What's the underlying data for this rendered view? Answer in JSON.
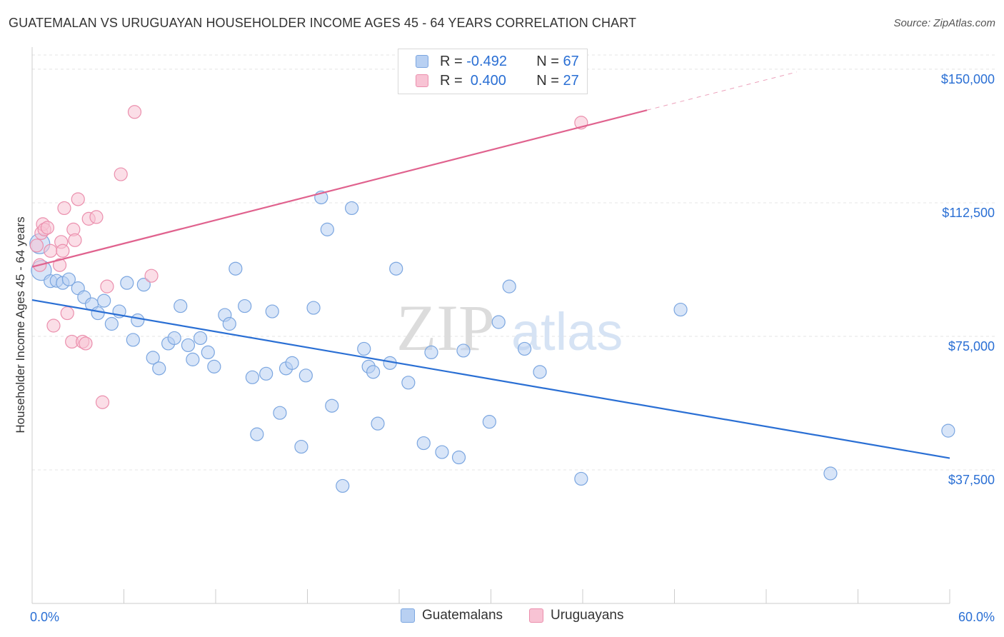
{
  "header": {
    "title": "GUATEMALAN VS URUGUAYAN HOUSEHOLDER INCOME AGES 45 - 64 YEARS CORRELATION CHART",
    "source": "Source: ZipAtlas.com"
  },
  "watermark": {
    "zip": "ZIP",
    "atlas": "atlas"
  },
  "stats_legend": [
    {
      "r_label": "R =",
      "r_value": "-0.492",
      "n_label": "N =",
      "n_value": "67"
    },
    {
      "r_label": "R =",
      "r_value": " 0.400",
      "n_label": "N =",
      "n_value": "27"
    }
  ],
  "colors": {
    "blue_fill": "#b8d0f2",
    "blue_stroke": "#7ba6e0",
    "blue_line": "#2a6fd4",
    "pink_fill": "#f8c3d4",
    "pink_stroke": "#eb8fad",
    "pink_line": "#e0628e",
    "axis_label": "#2a6fd4",
    "grid": "#e4e4e4"
  },
  "chart_data": {
    "type": "scatter",
    "xlabel": "",
    "ylabel": "Householder Income Ages 45 - 64 years",
    "xlim": [
      0,
      60
    ],
    "ylim": [
      0,
      155000
    ],
    "x_tick_labels": [
      "0.0%",
      "60.0%"
    ],
    "y_ticks": [
      37500,
      75000,
      112500,
      150000
    ],
    "y_tick_labels": [
      "$37,500",
      "$75,000",
      "$112,500",
      "$150,000"
    ],
    "grid": true,
    "legend_placement": "bottom",
    "series": [
      {
        "name": "Guatemalans",
        "trend": {
          "x": [
            0,
            60
          ],
          "y": [
            85200,
            40800
          ]
        },
        "points": [
          [
            0.5,
            101000
          ],
          [
            0.6,
            93500
          ],
          [
            1.2,
            90500
          ],
          [
            1.6,
            90600
          ],
          [
            2.0,
            90000
          ],
          [
            2.4,
            91000
          ],
          [
            3.0,
            88500
          ],
          [
            3.4,
            86000
          ],
          [
            3.9,
            84000
          ],
          [
            4.3,
            81500
          ],
          [
            4.7,
            85000
          ],
          [
            5.2,
            78500
          ],
          [
            5.7,
            82000
          ],
          [
            6.2,
            90000
          ],
          [
            6.6,
            74000
          ],
          [
            6.9,
            79500
          ],
          [
            7.3,
            89500
          ],
          [
            7.9,
            69000
          ],
          [
            8.3,
            66000
          ],
          [
            8.9,
            73000
          ],
          [
            9.3,
            74500
          ],
          [
            9.7,
            83500
          ],
          [
            10.2,
            72500
          ],
          [
            10.5,
            68500
          ],
          [
            11.0,
            74500
          ],
          [
            11.5,
            70500
          ],
          [
            11.9,
            66500
          ],
          [
            12.6,
            81000
          ],
          [
            12.9,
            78500
          ],
          [
            13.3,
            94000
          ],
          [
            13.9,
            83500
          ],
          [
            14.4,
            63500
          ],
          [
            14.7,
            47500
          ],
          [
            15.3,
            64500
          ],
          [
            15.7,
            82000
          ],
          [
            16.2,
            53500
          ],
          [
            16.6,
            66000
          ],
          [
            17.0,
            67500
          ],
          [
            17.6,
            44000
          ],
          [
            17.9,
            64000
          ],
          [
            18.4,
            83000
          ],
          [
            18.9,
            114000
          ],
          [
            19.3,
            105000
          ],
          [
            19.6,
            55500
          ],
          [
            20.3,
            33000
          ],
          [
            20.9,
            111000
          ],
          [
            21.7,
            71500
          ],
          [
            22.0,
            66500
          ],
          [
            22.3,
            65000
          ],
          [
            22.6,
            50500
          ],
          [
            23.4,
            67500
          ],
          [
            23.8,
            94000
          ],
          [
            24.6,
            62000
          ],
          [
            25.6,
            45000
          ],
          [
            26.1,
            70500
          ],
          [
            26.8,
            42500
          ],
          [
            27.9,
            41000
          ],
          [
            28.2,
            71000
          ],
          [
            29.9,
            51000
          ],
          [
            30.5,
            79000
          ],
          [
            31.2,
            89000
          ],
          [
            32.2,
            71500
          ],
          [
            33.2,
            65000
          ],
          [
            35.9,
            35000
          ],
          [
            42.4,
            82500
          ],
          [
            52.2,
            36500
          ],
          [
            59.9,
            48500
          ]
        ]
      },
      {
        "name": "Uruguayans",
        "trend": {
          "x": [
            0,
            40.2
          ],
          "y": [
            94500,
            138500
          ]
        },
        "points": [
          [
            0.3,
            100500
          ],
          [
            0.5,
            95000
          ],
          [
            0.6,
            104000
          ],
          [
            0.7,
            106500
          ],
          [
            0.8,
            105000
          ],
          [
            1.0,
            105500
          ],
          [
            1.2,
            99000
          ],
          [
            1.4,
            78000
          ],
          [
            1.8,
            95000
          ],
          [
            1.9,
            101500
          ],
          [
            2.0,
            99000
          ],
          [
            2.1,
            111000
          ],
          [
            2.3,
            81500
          ],
          [
            2.6,
            73500
          ],
          [
            2.7,
            105000
          ],
          [
            2.8,
            102000
          ],
          [
            3.0,
            113500
          ],
          [
            3.3,
            73500
          ],
          [
            3.5,
            73000
          ],
          [
            3.7,
            108000
          ],
          [
            4.2,
            108500
          ],
          [
            4.6,
            56500
          ],
          [
            4.9,
            89000
          ],
          [
            5.8,
            120500
          ],
          [
            6.7,
            138000
          ],
          [
            7.8,
            92000
          ],
          [
            35.9,
            135000
          ]
        ]
      }
    ]
  }
}
